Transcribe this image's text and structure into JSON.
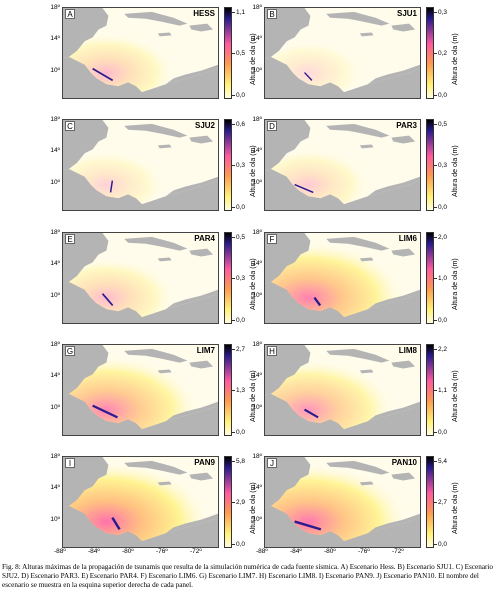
{
  "panels": [
    {
      "letter": "A",
      "name": "HESS",
      "cbar_max": "1,1",
      "cbar_mid": "0,5",
      "cbar_min": "0,0"
    },
    {
      "letter": "B",
      "name": "SJU1",
      "cbar_max": "0,3",
      "cbar_mid": "0,2",
      "cbar_min": "0,0"
    },
    {
      "letter": "C",
      "name": "SJU2",
      "cbar_max": "0,6",
      "cbar_mid": "0,3",
      "cbar_min": "0,0"
    },
    {
      "letter": "D",
      "name": "PAR3",
      "cbar_max": "0,5",
      "cbar_mid": "0,3",
      "cbar_min": "0,0"
    },
    {
      "letter": "E",
      "name": "PAR4",
      "cbar_max": "0,5",
      "cbar_mid": "0,3",
      "cbar_min": "0,0"
    },
    {
      "letter": "F",
      "name": "LIM6",
      "cbar_max": "2,0",
      "cbar_mid": "1,0",
      "cbar_min": "0,0"
    },
    {
      "letter": "G",
      "name": "LIM7",
      "cbar_max": "2,7",
      "cbar_mid": "1,3",
      "cbar_min": "0,0"
    },
    {
      "letter": "H",
      "name": "LIM8",
      "cbar_max": "2,2",
      "cbar_mid": "1,1",
      "cbar_min": "0,0"
    },
    {
      "letter": "I",
      "name": "PAN9",
      "cbar_max": "5,8",
      "cbar_mid": "2,9",
      "cbar_min": "0,0"
    },
    {
      "letter": "J",
      "name": "PAN10",
      "cbar_max": "5,4",
      "cbar_mid": "2,7",
      "cbar_min": "0,0"
    }
  ],
  "colorbar_label": "Altura de ola (m)",
  "y_ticks": [
    "18º",
    "14º",
    "10º"
  ],
  "x_ticks": [
    "-88º",
    "-84º",
    "-80º",
    "-76º",
    "-72º"
  ],
  "colors": {
    "land": "#b4b4b4",
    "sea": "#fffcec",
    "low": "#fff176",
    "mid": "#ff5aa0",
    "high": "#2a1b8f"
  },
  "caption": "Fig. 8: Alturas máximas de la propagación de tsunamis que resulta de la simulación numérica de cada fuente sísmica. A) Escenario Hess. B) Escenario SJU1. C) Escenario SJU2. D) Escenario PAR3. E) Escenario PAR4. F) Escenario LIM6. G) Escenario LIM7. H) Escenario LIM8. I) Escenario PAN9. J) Escenario PAN10. El nombre del escenario se muestra en la esquina superior derecha de cada panel."
}
